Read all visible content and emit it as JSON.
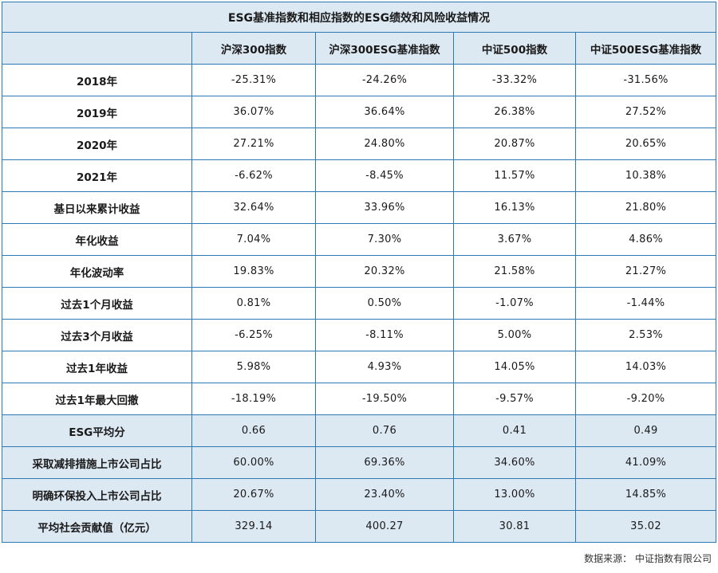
{
  "title": "ESG基准指数和相应指数的ESG绩效和风险收益情况",
  "columns": [
    "沪深300指数",
    "沪深300ESG基准指数",
    "中证500指数",
    "中证500ESG基准指数"
  ],
  "rows": [
    {
      "label": "2018年",
      "values": [
        "-25.31%",
        "-24.26%",
        "-33.32%",
        "-31.56%"
      ]
    },
    {
      "label": "2019年",
      "values": [
        "36.07%",
        "36.64%",
        "26.38%",
        "27.52%"
      ]
    },
    {
      "label": "2020年",
      "values": [
        "27.21%",
        "24.80%",
        "20.87%",
        "20.65%"
      ]
    },
    {
      "label": "2021年",
      "values": [
        "-6.62%",
        "-8.45%",
        "11.57%",
        "10.38%"
      ]
    },
    {
      "label": "基日以来累计收益",
      "values": [
        "32.64%",
        "33.96%",
        "16.13%",
        "21.80%"
      ]
    },
    {
      "label": "年化收益",
      "values": [
        "7.04%",
        "7.30%",
        "3.67%",
        "4.86%"
      ]
    },
    {
      "label": "年化波动率",
      "values": [
        "19.83%",
        "20.32%",
        "21.58%",
        "21.27%"
      ]
    },
    {
      "label": "过去1个月收益",
      "values": [
        "0.81%",
        "0.50%",
        "-1.07%",
        "-1.44%"
      ]
    },
    {
      "label": "过去3个月收益",
      "values": [
        "-6.25%",
        "-8.11%",
        "5.00%",
        "2.53%"
      ]
    },
    {
      "label": "过去1年收益",
      "values": [
        "5.98%",
        "4.93%",
        "14.05%",
        "14.03%"
      ]
    },
    {
      "label": "过去1年最大回撤",
      "values": [
        "-18.19%",
        "-19.50%",
        "-9.57%",
        "-9.20%"
      ]
    },
    {
      "label": "ESG平均分",
      "values": [
        "0.66",
        "0.76",
        "0.41",
        "0.49"
      ]
    },
    {
      "label": "采取减排措施上市公司占比",
      "values": [
        "60.00%",
        "69.36%",
        "34.60%",
        "41.09%"
      ]
    },
    {
      "label": "明确环保投入上市公司占比",
      "values": [
        "20.67%",
        "23.40%",
        "13.00%",
        "14.85%"
      ]
    },
    {
      "label": "平均社会贡献值（亿元）",
      "values": [
        "329.14",
        "400.27",
        "30.81",
        "35.02"
      ]
    }
  ],
  "source": "数据来源：  中证指数有限公司",
  "colors": {
    "border": "#2b79b5",
    "shade": "#dce8f2"
  }
}
